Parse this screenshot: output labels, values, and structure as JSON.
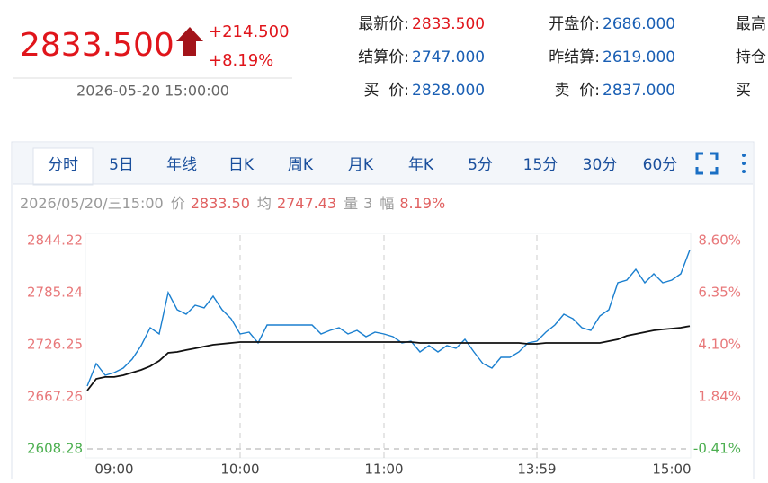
{
  "quote": {
    "price": "2833.500",
    "change": "+214.500",
    "change_pct": "+8.19%",
    "time": "2026-05-20 15:00:00"
  },
  "fields": [
    [
      {
        "label": "最新价:",
        "value": "2833.500"
      },
      {
        "label": "开盘价:",
        "value": "2686.000"
      },
      {
        "label": "最高"
      }
    ],
    [
      {
        "label": "结算价:",
        "value": "2747.000"
      },
      {
        "label": "昨结算:",
        "value": "2619.000"
      },
      {
        "label": "持仓"
      }
    ],
    [
      {
        "label": "买  价:",
        "value": "2828.000"
      },
      {
        "label": "卖  价:",
        "value": "2837.000"
      },
      {
        "label": "买"
      }
    ]
  ],
  "tabs": [
    "分时",
    "5日",
    "年线",
    "日K",
    "周K",
    "月K",
    "年K",
    "5分",
    "15分",
    "30分",
    "60分"
  ],
  "info": {
    "time": "2026/05/20/三15:00",
    "items": [
      {
        "label": "价",
        "value": "2833.50",
        "color": "#e06060"
      },
      {
        "label": "均",
        "value": "2747.43",
        "color": "#e06060"
      },
      {
        "label": "量",
        "value": "3",
        "color": "#999999"
      },
      {
        "label": "幅",
        "value": "8.19%",
        "color": "#e06060"
      }
    ]
  },
  "chart_data": {
    "type": "line",
    "categories": [
      null,
      null,
      null,
      "09:00",
      null,
      null,
      null,
      null,
      null,
      null,
      null,
      null,
      null,
      null,
      null,
      null,
      null,
      "10:00",
      null,
      null,
      null,
      null,
      null,
      null,
      null,
      null,
      null,
      null,
      null,
      null,
      null,
      null,
      null,
      "11:00",
      null,
      null,
      null,
      null,
      null,
      null,
      null,
      null,
      null,
      null,
      null,
      null,
      null,
      null,
      null,
      null,
      "13:59",
      null,
      null,
      null,
      null,
      null,
      null,
      null,
      null,
      null,
      null,
      null,
      null,
      null,
      null,
      "15:00",
      null,
      null
    ],
    "series": [
      {
        "color": "#1a7fcf",
        "values": [
          2679.5,
          2704.9,
          2691.7,
          2694.7,
          2699.8,
          2710.0,
          2725.3,
          2745.6,
          2738.5,
          2785.3,
          2765.9,
          2760.8,
          2771.0,
          2768.0,
          2781.2,
          2765.9,
          2755.7,
          2738.5,
          2740.5,
          2728.3,
          2748.6,
          2748.6,
          2748.6,
          2748.6,
          2748.6,
          2748.6,
          2738.5,
          2742.5,
          2745.6,
          2738.5,
          2742.5,
          2735.4,
          2740.5,
          2738.5,
          2735.4,
          2728.3,
          2730.3,
          2718.1,
          2725.3,
          2718.1,
          2725.3,
          2722.2,
          2732.4,
          2718.1,
          2704.9,
          2699.8,
          2712.0,
          2712.0,
          2718.1,
          2728.3,
          2730.3,
          2740.5,
          2748.6,
          2760.8,
          2755.7,
          2745.6,
          2742.5,
          2758.8,
          2765.9,
          2796.4,
          2799.5,
          2811.7,
          2796.4,
          2806.6,
          2796.4,
          2799.5,
          2806.6,
          2833.5
        ]
      },
      {
        "color": "#111111",
        "values": [
          2674.4,
          2687.6,
          2689.7,
          2689.7,
          2691.7,
          2694.7,
          2697.8,
          2701.9,
          2708.0,
          2717.1,
          2718.1,
          2720.2,
          2722.2,
          2724.2,
          2726.3,
          2727.3,
          2728.3,
          2729.3,
          2729.3,
          2729.3,
          2729.3,
          2729.3,
          2729.3,
          2729.3,
          2729.3,
          2729.3,
          2729.3,
          2729.3,
          2729.3,
          2729.3,
          2729.3,
          2729.3,
          2729.3,
          2729.3,
          2729.3,
          2729.3,
          2729.3,
          2728.3,
          2728.3,
          2728.3,
          2728.3,
          2728.3,
          2728.3,
          2728.3,
          2728.3,
          2728.3,
          2728.3,
          2728.3,
          2728.3,
          2727.3,
          2727.3,
          2728.3,
          2728.3,
          2728.3,
          2728.3,
          2728.3,
          2728.3,
          2728.3,
          2730.3,
          2732.4,
          2736.4,
          2738.5,
          2740.5,
          2742.5,
          2743.6,
          2744.6,
          2745.6,
          2747.4
        ]
      }
    ],
    "ylim": [
      2608.28,
      2844.22
    ],
    "yticks": [
      2608.28,
      2667.26,
      2726.25,
      2785.24,
      2844.22
    ],
    "y2lim": [
      -0.41,
      8.6
    ],
    "y2ticks": [
      {
        "value": -0.41,
        "label": "-0.41%"
      },
      {
        "value": 1.84,
        "label": "1.84%"
      },
      {
        "value": 4.1,
        "label": "4.10%"
      },
      {
        "value": 6.35,
        "label": "6.35%"
      },
      {
        "value": 8.6,
        "label": "8.60%"
      }
    ]
  }
}
